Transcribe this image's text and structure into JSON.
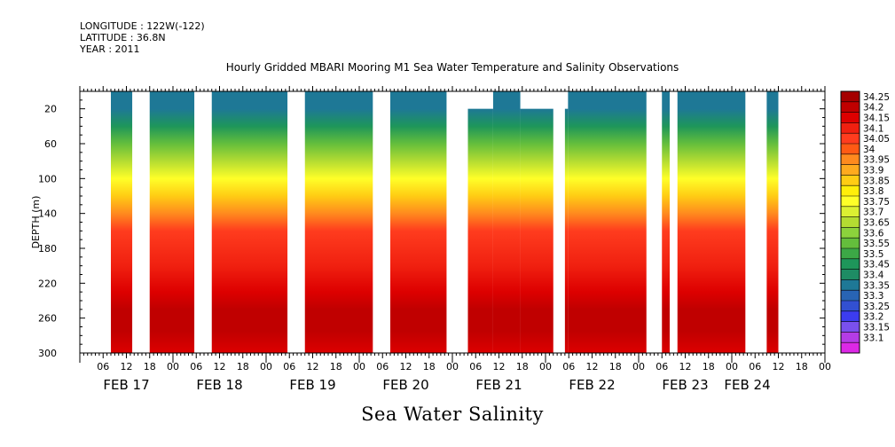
{
  "header": {
    "longitude": "LONGITUDE : 122W(-122)",
    "latitude": "LATITUDE : 36.8N",
    "year": "YEAR : 2011"
  },
  "chart_data": {
    "type": "heatmap",
    "title": "Hourly Gridded MBARI Mooring M1 Sea Water Temperature and Salinity Observations",
    "bottom_title": "Sea Water Salinity",
    "ylabel": "DEPTH (m)",
    "ylim": [
      300,
      0
    ],
    "y_ticks": [
      20,
      60,
      100,
      140,
      180,
      220,
      260,
      300
    ],
    "x_time_range_hours": [
      0,
      192
    ],
    "x_hour_ticks": [
      {
        "t": 6,
        "label": "06"
      },
      {
        "t": 12,
        "label": "12"
      },
      {
        "t": 18,
        "label": "18"
      },
      {
        "t": 24,
        "label": "00"
      },
      {
        "t": 30,
        "label": "06"
      },
      {
        "t": 36,
        "label": "12"
      },
      {
        "t": 42,
        "label": "18"
      },
      {
        "t": 48,
        "label": "00"
      },
      {
        "t": 54,
        "label": "06"
      },
      {
        "t": 60,
        "label": "12"
      },
      {
        "t": 66,
        "label": "18"
      },
      {
        "t": 72,
        "label": "00"
      },
      {
        "t": 78,
        "label": "06"
      },
      {
        "t": 84,
        "label": "12"
      },
      {
        "t": 90,
        "label": "18"
      },
      {
        "t": 96,
        "label": "00"
      },
      {
        "t": 102,
        "label": "06"
      },
      {
        "t": 108,
        "label": "12"
      },
      {
        "t": 114,
        "label": "18"
      },
      {
        "t": 120,
        "label": "00"
      },
      {
        "t": 126,
        "label": "06"
      },
      {
        "t": 132,
        "label": "12"
      },
      {
        "t": 138,
        "label": "18"
      },
      {
        "t": 144,
        "label": "00"
      },
      {
        "t": 150,
        "label": "06"
      },
      {
        "t": 156,
        "label": "12"
      },
      {
        "t": 162,
        "label": "18"
      },
      {
        "t": 168,
        "label": "00"
      },
      {
        "t": 174,
        "label": "06"
      },
      {
        "t": 180,
        "label": "12"
      },
      {
        "t": 186,
        "label": "18"
      },
      {
        "t": 192,
        "label": "00"
      }
    ],
    "x_day_labels": [
      {
        "t": 12,
        "label": "FEB 17"
      },
      {
        "t": 36,
        "label": "FEB 18"
      },
      {
        "t": 60,
        "label": "FEB 19"
      },
      {
        "t": 84,
        "label": "FEB 20"
      },
      {
        "t": 108,
        "label": "FEB 21"
      },
      {
        "t": 132,
        "label": "FEB 22"
      },
      {
        "t": 156,
        "label": "FEB 23"
      },
      {
        "t": 172,
        "label": "FEB 24"
      }
    ],
    "data_segments_hours": [
      {
        "start": 8,
        "end": 13.5,
        "top_depth": 0
      },
      {
        "start": 18,
        "end": 29.5,
        "top_depth": 0
      },
      {
        "start": 34,
        "end": 53.5,
        "top_depth": 0
      },
      {
        "start": 58,
        "end": 75.5,
        "top_depth": 0
      },
      {
        "start": 80,
        "end": 94.5,
        "top_depth": 0
      },
      {
        "start": 100,
        "end": 106.5,
        "top_depth": 20
      },
      {
        "start": 106.5,
        "end": 113.5,
        "top_depth": 0
      },
      {
        "start": 113.5,
        "end": 122,
        "top_depth": 20
      },
      {
        "start": 125,
        "end": 125.8,
        "top_depth": 20
      },
      {
        "start": 125.8,
        "end": 146,
        "top_depth": 0
      },
      {
        "start": 150,
        "end": 152,
        "top_depth": 0
      },
      {
        "start": 154,
        "end": 171.5,
        "top_depth": 0
      },
      {
        "start": 177,
        "end": 180,
        "top_depth": 0
      }
    ],
    "depth_profile": [
      {
        "depth": 0,
        "salinity": 33.35
      },
      {
        "depth": 20,
        "salinity": 33.35
      },
      {
        "depth": 40,
        "salinity": 33.45
      },
      {
        "depth": 60,
        "salinity": 33.55
      },
      {
        "depth": 80,
        "salinity": 33.65
      },
      {
        "depth": 100,
        "salinity": 33.75
      },
      {
        "depth": 120,
        "salinity": 33.85
      },
      {
        "depth": 140,
        "salinity": 33.95
      },
      {
        "depth": 160,
        "salinity": 34.05
      },
      {
        "depth": 200,
        "salinity": 34.1
      },
      {
        "depth": 230,
        "salinity": 34.15
      },
      {
        "depth": 250,
        "salinity": 34.2
      },
      {
        "depth": 275,
        "salinity": 34.2
      },
      {
        "depth": 300,
        "salinity": 34.15
      }
    ],
    "colorbar": {
      "levels": [
        "34.25",
        "34.2",
        "34.15",
        "34.1",
        "34.05",
        "34",
        "33.95",
        "33.9",
        "33.85",
        "33.8",
        "33.75",
        "33.7",
        "33.65",
        "33.6",
        "33.55",
        "33.5",
        "33.45",
        "33.4",
        "33.35",
        "33.3",
        "33.25",
        "33.2",
        "33.15",
        "33.1"
      ],
      "colors": [
        "#a50000",
        "#c00000",
        "#dd0000",
        "#f02010",
        "#ff3c1e",
        "#ff5a14",
        "#ff8a1e",
        "#ffaa1e",
        "#ffcc14",
        "#ffee0a",
        "#ffff28",
        "#dcf032",
        "#b4dc32",
        "#8cd23c",
        "#64be3c",
        "#3ca846",
        "#1e965a",
        "#1e8c64",
        "#1e7896",
        "#2864b4",
        "#3250d2",
        "#3c3cf0",
        "#7a50ee",
        "#b43ce6",
        "#dc28e6"
      ]
    }
  }
}
